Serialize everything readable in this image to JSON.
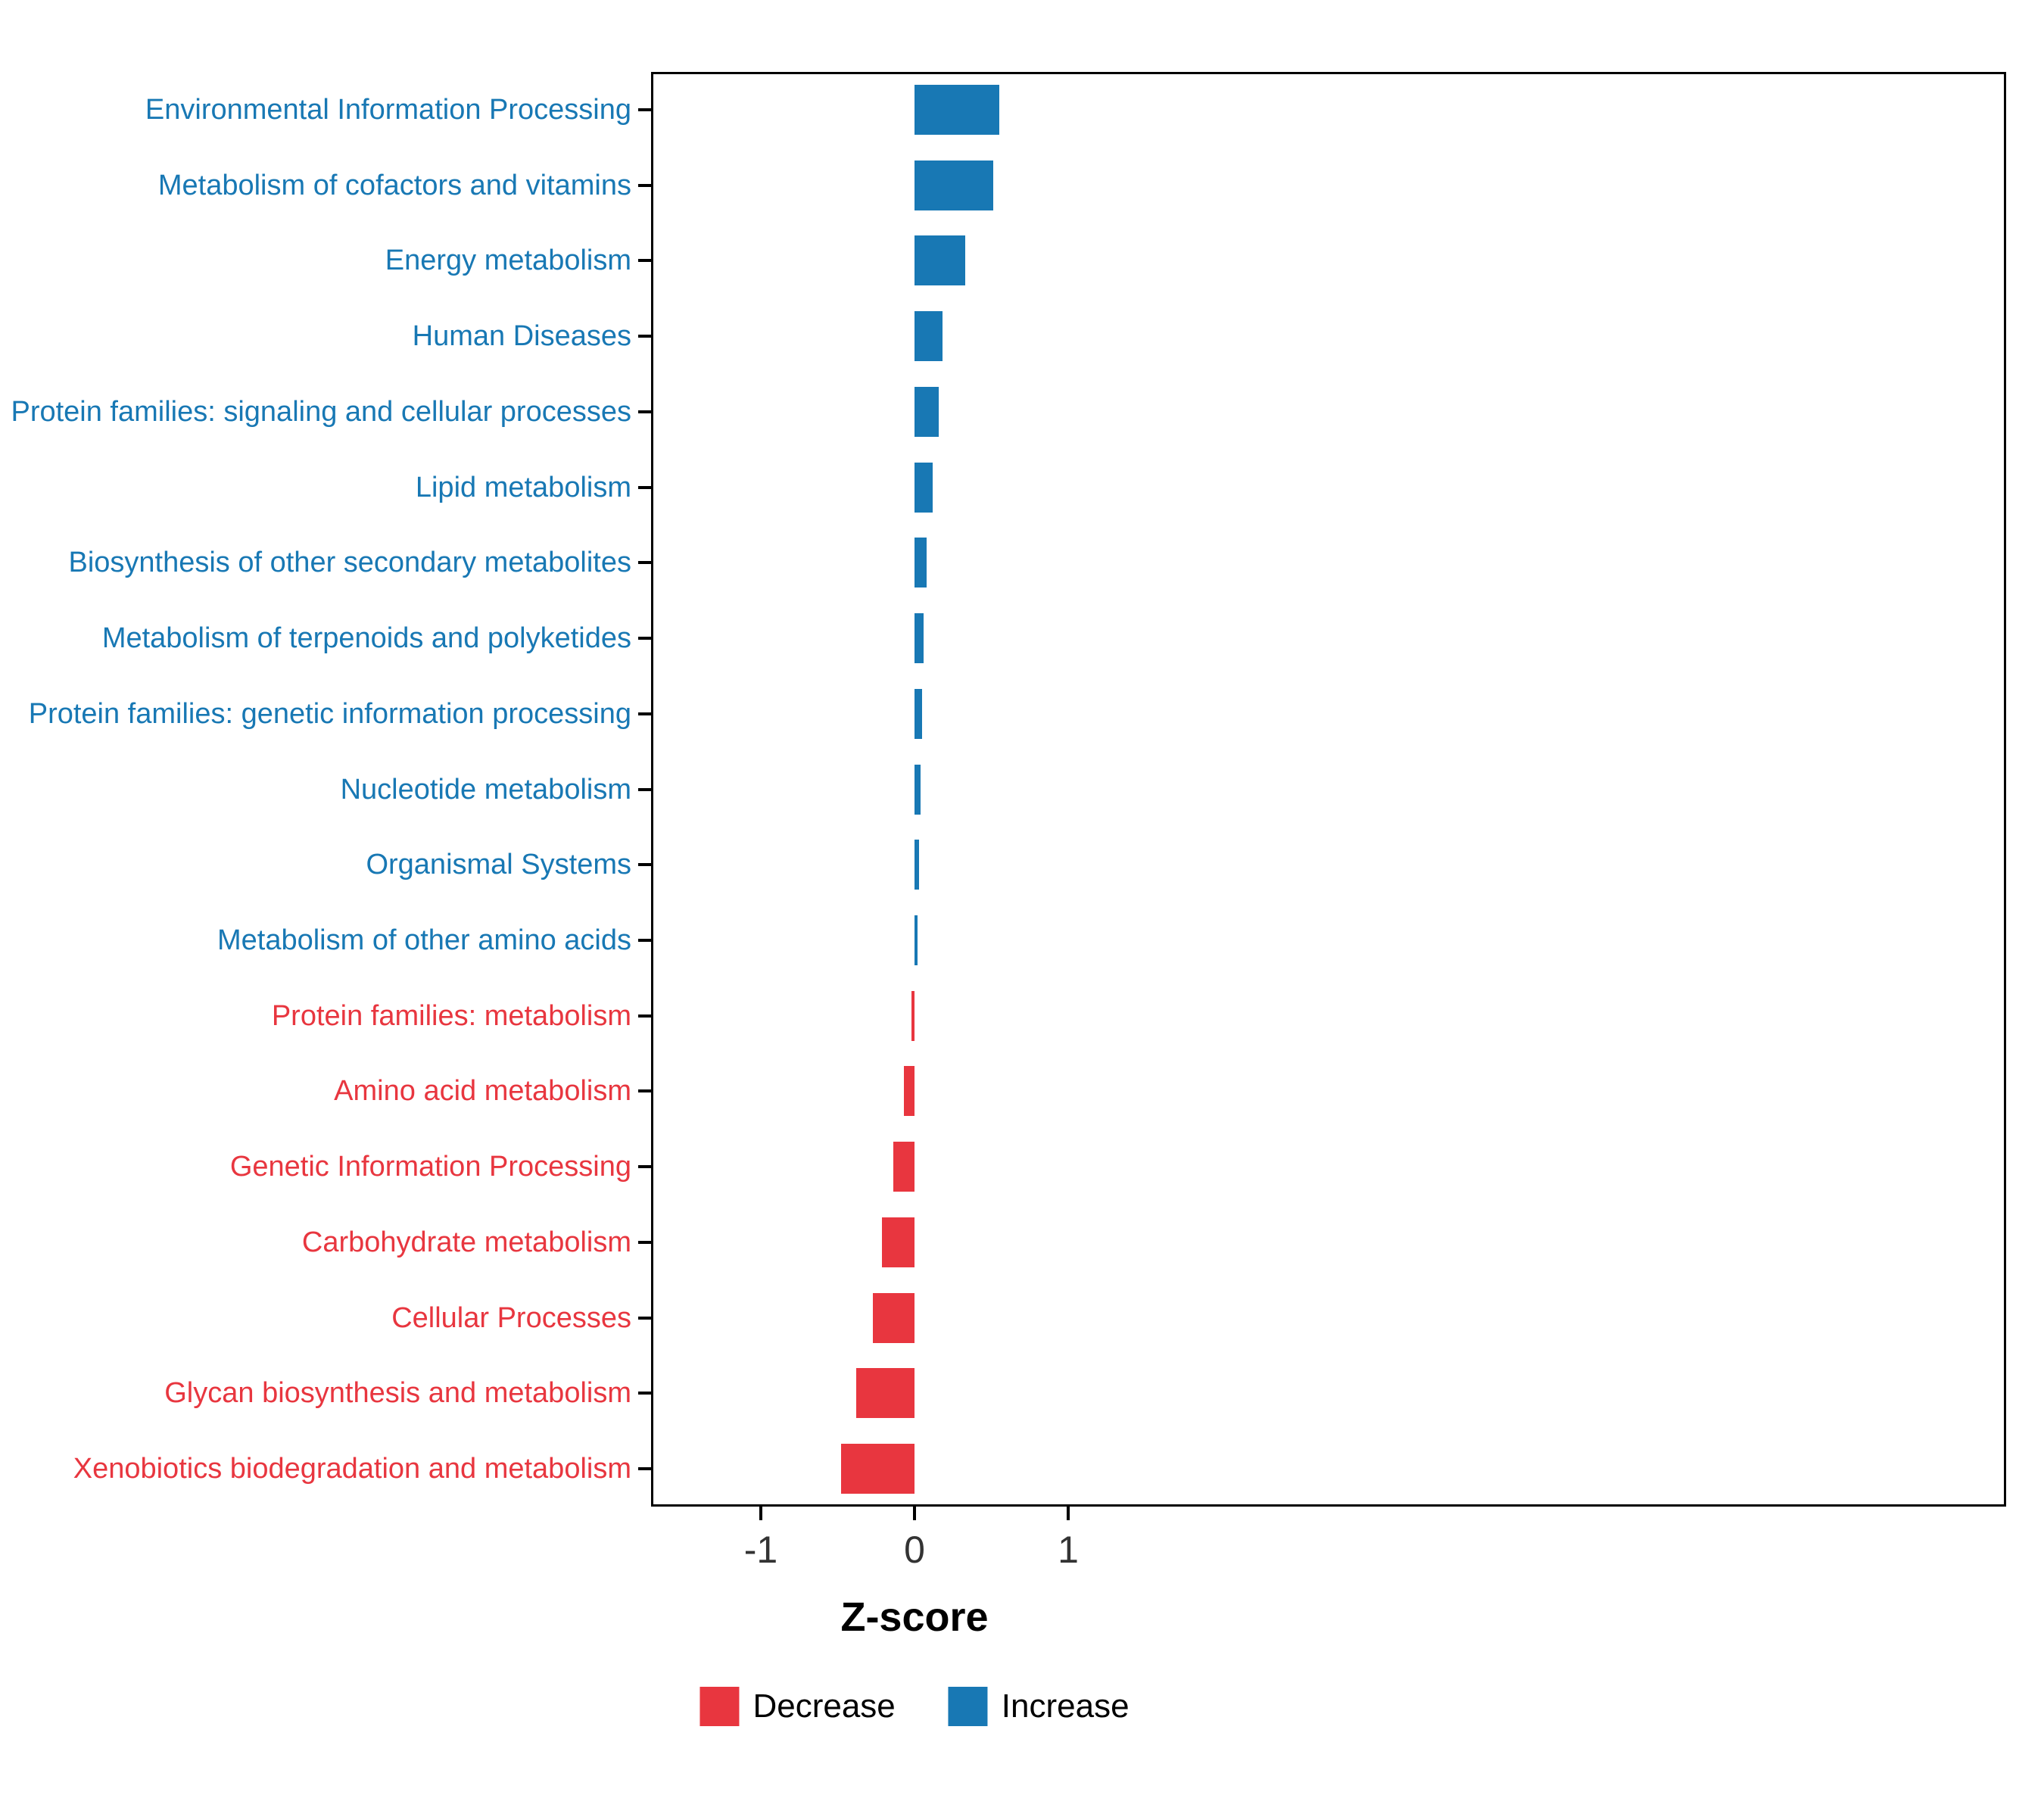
{
  "chart_data": {
    "type": "bar",
    "orientation": "horizontal",
    "title": "",
    "xlabel": "Z-score",
    "ylabel": "",
    "xlim": [
      -1.7,
      7.1
    ],
    "xticks": [
      -1,
      0,
      1
    ],
    "grid": false,
    "legend_position": "bottom",
    "categories": [
      "Environmental Information Processing",
      "Metabolism of cofactors and vitamins",
      "Energy metabolism",
      "Human Diseases",
      "Protein families: signaling and cellular processes",
      "Lipid metabolism",
      "Biosynthesis of other secondary metabolites",
      "Metabolism of terpenoids and polyketides",
      "Protein families: genetic information processing",
      "Nucleotide metabolism",
      "Organismal Systems",
      "Metabolism of other amino acids",
      "Protein families: metabolism",
      "Amino acid metabolism",
      "Genetic Information Processing",
      "Carbohydrate metabolism",
      "Cellular Processes",
      "Glycan biosynthesis and metabolism",
      "Xenobiotics biodegradation and metabolism"
    ],
    "values": [
      0.55,
      0.51,
      0.33,
      0.18,
      0.16,
      0.12,
      0.08,
      0.06,
      0.05,
      0.04,
      0.03,
      0.02,
      -0.02,
      -0.07,
      -0.14,
      -0.21,
      -0.27,
      -0.38,
      -0.48
    ],
    "groups": [
      "Increase",
      "Increase",
      "Increase",
      "Increase",
      "Increase",
      "Increase",
      "Increase",
      "Increase",
      "Increase",
      "Increase",
      "Increase",
      "Increase",
      "Decrease",
      "Decrease",
      "Decrease",
      "Decrease",
      "Decrease",
      "Decrease",
      "Decrease"
    ],
    "series": [
      {
        "name": "Increase",
        "color": "#1878B4"
      },
      {
        "name": "Decrease",
        "color": "#E8363F"
      }
    ]
  },
  "legend": {
    "items": [
      {
        "label": "Decrease",
        "color": "#E8363F"
      },
      {
        "label": "Increase",
        "color": "#1878B4"
      }
    ]
  },
  "colors": {
    "increase": "#1878B4",
    "decrease": "#E8363F",
    "axis_text": "#333333",
    "panel_border": "#000000"
  }
}
